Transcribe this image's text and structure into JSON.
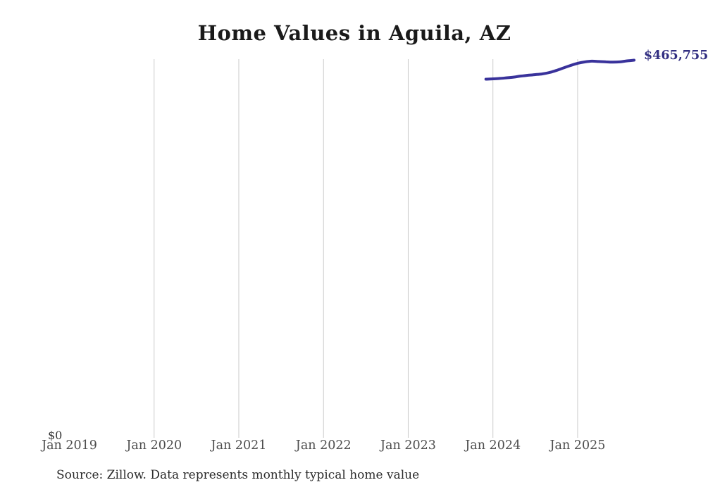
{
  "header": {
    "title": "Home Values in Aguila, AZ"
  },
  "footer": {
    "source_note": "Source: Zillow. Data represents monthly typical home value"
  },
  "colors": {
    "background": "#ffffff",
    "line": "#39329b",
    "end_label": "#312e81",
    "gridline": "#cbcbcb",
    "title": "#1a1a1a",
    "axis_label": "#4d4d4d",
    "zero_label": "#333333",
    "source": "#2b2b2b"
  },
  "chart_data": {
    "type": "line",
    "title": "Home Values in Aguila, AZ",
    "xlabel": "",
    "ylabel": "",
    "legend": "none",
    "grid": "vertical-only",
    "y_axis": {
      "zero_label": "$0",
      "ylim": [
        0,
        467000
      ],
      "tick_labels_shown": [
        "$0"
      ]
    },
    "x_ticks": [
      {
        "label": "Jan 2019",
        "month": "2019-01",
        "gridline": false
      },
      {
        "label": "Jan 2020",
        "month": "2020-01",
        "gridline": true
      },
      {
        "label": "Jan 2021",
        "month": "2021-01",
        "gridline": true
      },
      {
        "label": "Jan 2022",
        "month": "2022-01",
        "gridline": true
      },
      {
        "label": "Jan 2023",
        "month": "2023-01",
        "gridline": true
      },
      {
        "label": "Jan 2024",
        "month": "2024-01",
        "gridline": true
      },
      {
        "label": "Jan 2025",
        "month": "2025-01",
        "gridline": true
      }
    ],
    "end_label": "$465,755",
    "series": [
      {
        "name": "Typical home value",
        "points": [
          {
            "month": "2023-12",
            "value": 442300
          },
          {
            "month": "2024-01",
            "value": 442700
          },
          {
            "month": "2024-02",
            "value": 443200
          },
          {
            "month": "2024-03",
            "value": 444000
          },
          {
            "month": "2024-04",
            "value": 444900
          },
          {
            "month": "2024-05",
            "value": 446200
          },
          {
            "month": "2024-06",
            "value": 447100
          },
          {
            "month": "2024-07",
            "value": 447900
          },
          {
            "month": "2024-08",
            "value": 448800
          },
          {
            "month": "2024-09",
            "value": 450500
          },
          {
            "month": "2024-10",
            "value": 453100
          },
          {
            "month": "2024-11",
            "value": 456200
          },
          {
            "month": "2024-12",
            "value": 459200
          },
          {
            "month": "2025-01",
            "value": 461900
          },
          {
            "month": "2025-02",
            "value": 463600
          },
          {
            "month": "2025-03",
            "value": 464500
          },
          {
            "month": "2025-04",
            "value": 464100
          },
          {
            "month": "2025-05",
            "value": 463700
          },
          {
            "month": "2025-06",
            "value": 463300
          },
          {
            "month": "2025-07",
            "value": 463700
          },
          {
            "month": "2025-08",
            "value": 464900
          },
          {
            "month": "2025-09",
            "value": 465755
          }
        ]
      }
    ]
  }
}
